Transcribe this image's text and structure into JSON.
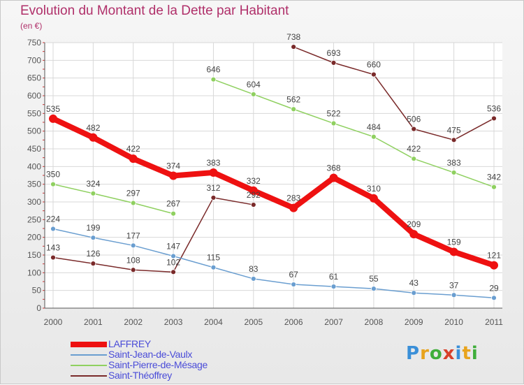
{
  "title": "Evolution du Montant de la Dette par Habitant",
  "subtitle": "(en €)",
  "logo": {
    "text": "Proxiti",
    "colors": [
      "#3a8fd8",
      "#e8a31c",
      "#3fae3a",
      "#d8402a",
      "#3a8fd8",
      "#e8a31c",
      "#3fae3a"
    ]
  },
  "chart_data": {
    "type": "line",
    "categories": [
      "2000",
      "2001",
      "2002",
      "2003",
      "2004",
      "2005",
      "2006",
      "2007",
      "2008",
      "2009",
      "2010",
      "2011"
    ],
    "ylim": [
      0,
      750
    ],
    "yticks": [
      "0",
      "50",
      "100",
      "150",
      "200",
      "250",
      "300",
      "350",
      "400",
      "450",
      "500",
      "550",
      "600",
      "650",
      "700",
      "750"
    ],
    "xlabel": "",
    "ylabel": "",
    "grid": true,
    "legend_position": "bottom-left",
    "series": [
      {
        "name": "LAFFREY",
        "color": "#ee1111",
        "values": [
          535,
          482,
          422,
          374,
          383,
          332,
          283,
          368,
          310,
          209,
          159,
          121
        ]
      },
      {
        "name": "Saint-Jean-de-Vaulx",
        "color": "#6a9ed0",
        "values": [
          224,
          199,
          177,
          147,
          115,
          83,
          67,
          61,
          55,
          43,
          37,
          29
        ]
      },
      {
        "name": "Saint-Pierre-de-Mésage",
        "color": "#8fd060",
        "values": [
          350,
          324,
          297,
          267,
          646,
          604,
          562,
          522,
          484,
          422,
          383,
          342
        ]
      },
      {
        "name": "Saint-Théoffrey",
        "color": "#7a2a2a",
        "values": [
          143,
          126,
          108,
          102,
          312,
          292,
          738,
          693,
          660,
          506,
          475,
          536
        ]
      }
    ]
  }
}
